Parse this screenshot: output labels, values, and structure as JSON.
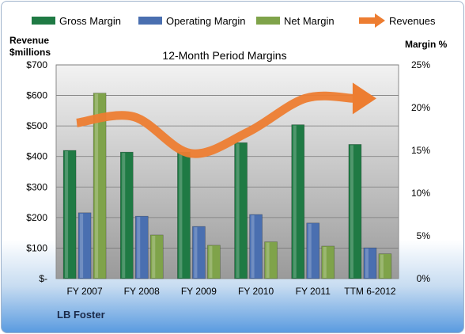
{
  "chart_data": {
    "type": "bar",
    "title": "12-Month Period Margins",
    "ylabel_left": "Revenue\n$millions",
    "ylabel_right": "Margin %",
    "categories": [
      "FY 2007",
      "FY 2008",
      "FY 2009",
      "FY 2010",
      "FY 2011",
      "TTM 6-2012"
    ],
    "left_ticks": [
      "$-",
      "$100",
      "$200",
      "$300",
      "$400",
      "$500",
      "$600",
      "$700"
    ],
    "right_ticks": [
      "0%",
      "5%",
      "10%",
      "15%",
      "20%",
      "25%"
    ],
    "ylim_left": [
      0,
      700
    ],
    "ylim_right": [
      0,
      25
    ],
    "series": [
      {
        "name": "Gross Margin",
        "axis": "right",
        "values": [
          15.0,
          14.8,
          14.8,
          15.9,
          18.0,
          15.7
        ],
        "color": "#1f7a44"
      },
      {
        "name": "Operating Margin",
        "axis": "right",
        "values": [
          7.7,
          7.3,
          6.1,
          7.5,
          6.5,
          3.6
        ],
        "color": "#4a6fb0"
      },
      {
        "name": "Net Margin",
        "axis": "right",
        "values": [
          21.7,
          5.1,
          3.9,
          4.3,
          3.8,
          2.9
        ],
        "color": "#7fa34a"
      },
      {
        "name": "Revenues",
        "axis": "left",
        "type": "line",
        "values": [
          510,
          530,
          410,
          480,
          590,
          590
        ],
        "color": "#ed7d31"
      }
    ],
    "legend": "top",
    "grid": true
  },
  "company": "LB Foster"
}
